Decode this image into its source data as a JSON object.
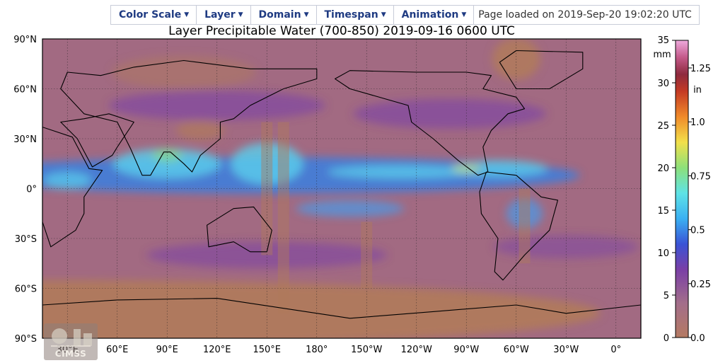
{
  "menu": {
    "items": [
      {
        "label": "Color Scale",
        "name": "menu-color-scale"
      },
      {
        "label": "Layer",
        "name": "menu-layer"
      },
      {
        "label": "Domain",
        "name": "menu-domain"
      },
      {
        "label": "Timespan",
        "name": "menu-timespan"
      },
      {
        "label": "Animation",
        "name": "menu-animation"
      }
    ],
    "status": "Page loaded on 2019-Sep-20 19:02:20 UTC"
  },
  "map": {
    "title": "Layer Precipitable Water (700-850)  2019-09-16 0600 UTC",
    "lat_ticks": [
      {
        "label": "90°N",
        "lat": 90
      },
      {
        "label": "60°N",
        "lat": 60
      },
      {
        "label": "30°N",
        "lat": 30
      },
      {
        "label": "0°",
        "lat": 0
      },
      {
        "label": "30°S",
        "lat": -30
      },
      {
        "label": "60°S",
        "lat": -60
      },
      {
        "label": "90°S",
        "lat": -90
      }
    ],
    "lon_ticks": [
      {
        "label": "30°E",
        "lon": 30
      },
      {
        "label": "60°E",
        "lon": 60
      },
      {
        "label": "90°E",
        "lon": 90
      },
      {
        "label": "120°E",
        "lon": 120
      },
      {
        "label": "150°E",
        "lon": 150
      },
      {
        "label": "180°",
        "lon": 180
      },
      {
        "label": "150°W",
        "lon": 210
      },
      {
        "label": "120°W",
        "lon": 240
      },
      {
        "label": "90°W",
        "lon": 270
      },
      {
        "label": "60°W",
        "lon": 300
      },
      {
        "label": "30°W",
        "lon": 330
      },
      {
        "label": "0°",
        "lon": 360
      }
    ],
    "lon_range": [
      15,
      375
    ],
    "lat_range": [
      -90,
      90
    ],
    "logo_text": "CIMSS"
  },
  "colorbar": {
    "mm_unit": "mm",
    "in_unit": "in",
    "range_mm": [
      0,
      35
    ],
    "mm_ticks": [
      {
        "label": "35",
        "v": 35
      },
      {
        "label": "30",
        "v": 30
      },
      {
        "label": "25",
        "v": 25
      },
      {
        "label": "20",
        "v": 20
      },
      {
        "label": "15",
        "v": 15
      },
      {
        "label": "10",
        "v": 10
      },
      {
        "label": "5",
        "v": 5
      },
      {
        "label": "0",
        "v": 0
      }
    ],
    "in_ticks": [
      {
        "label": "1.25",
        "v": 1.25
      },
      {
        "label": "1.0",
        "v": 1.0
      },
      {
        "label": "0.75",
        "v": 0.75
      },
      {
        "label": "0.5",
        "v": 0.5
      },
      {
        "label": "0.25",
        "v": 0.25
      },
      {
        "label": "0.0",
        "v": 0.0
      }
    ],
    "stops": [
      {
        "v": 0,
        "color": "#b57a62"
      },
      {
        "v": 4,
        "color": "#a36e8a"
      },
      {
        "v": 8,
        "color": "#7a3fa6"
      },
      {
        "v": 11,
        "color": "#3a53d6"
      },
      {
        "v": 14,
        "color": "#3ab0f2"
      },
      {
        "v": 17,
        "color": "#5fe3e6"
      },
      {
        "v": 20,
        "color": "#8de07a"
      },
      {
        "v": 23,
        "color": "#f2e04a"
      },
      {
        "v": 26,
        "color": "#f08a2a"
      },
      {
        "v": 29,
        "color": "#c43a24"
      },
      {
        "v": 31,
        "color": "#8e2a3e"
      },
      {
        "v": 33,
        "color": "#c45a8a"
      },
      {
        "v": 35,
        "color": "#eeaadd"
      }
    ]
  },
  "colors": {
    "ocean_base": "#a26a82",
    "dry_land": "#b07a5c",
    "moist_band": "#3a7fe0",
    "tropics": "#5ad0ec",
    "menu_text": "#1f3b82"
  }
}
